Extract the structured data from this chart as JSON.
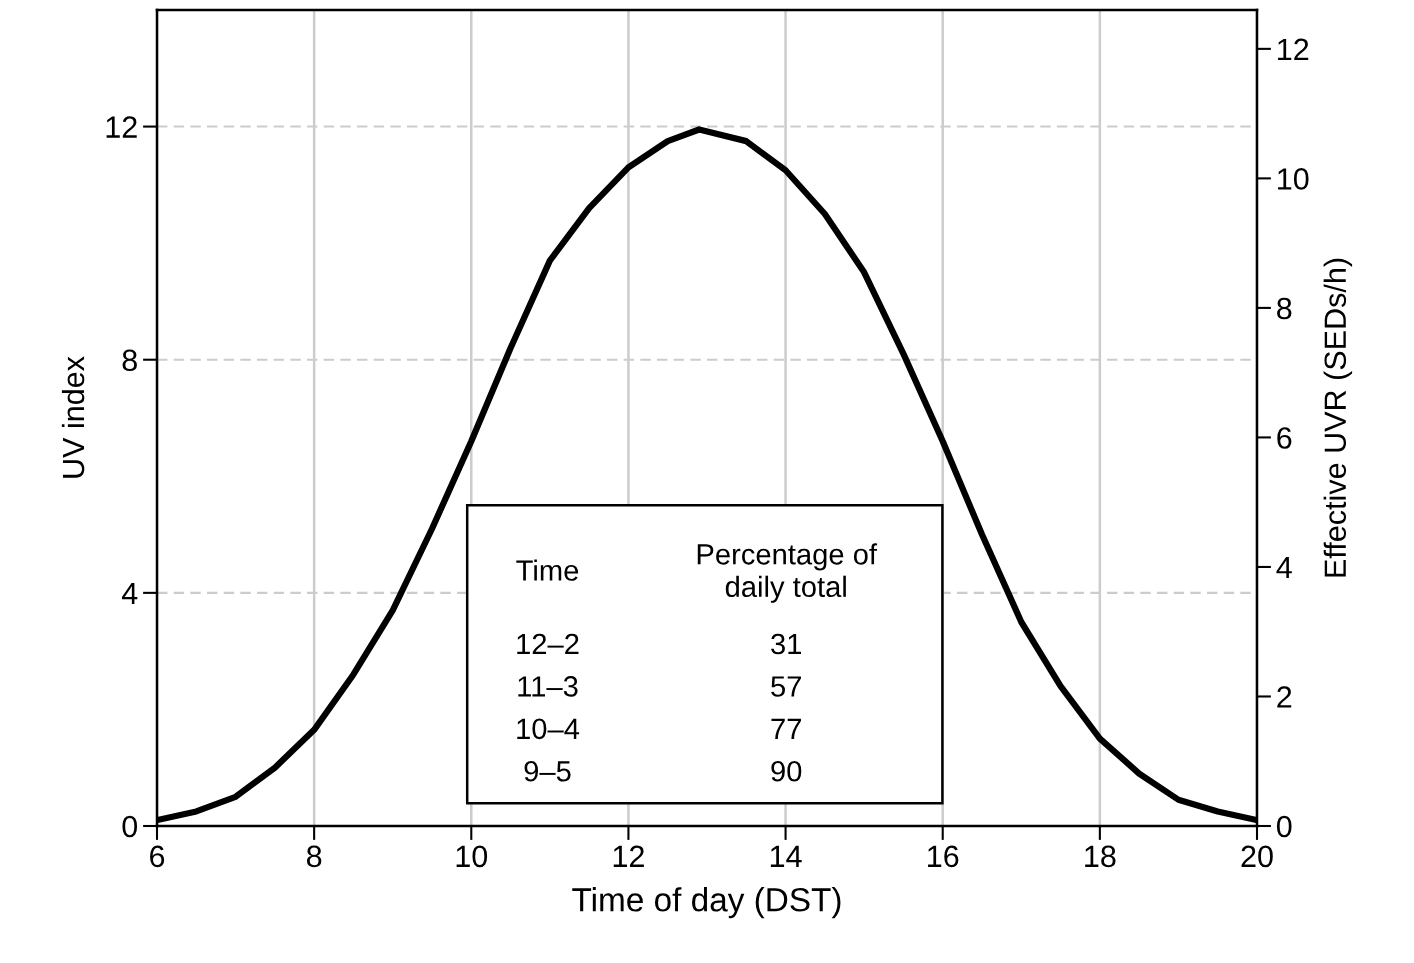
{
  "chart_data": {
    "type": "line",
    "xlabel": "Time of day (DST)",
    "ylabel": "UV index",
    "y2label": "Effective UVR (SEDs/h)",
    "x": [
      6,
      6.5,
      7,
      7.5,
      8,
      8.5,
      9,
      9.5,
      10,
      10.5,
      11,
      11.5,
      12,
      12.5,
      12.9,
      13.5,
      14,
      14.5,
      15,
      15.5,
      16,
      16.5,
      17,
      17.5,
      18,
      18.5,
      19,
      19.5,
      20
    ],
    "series": [
      {
        "color": "#000000",
        "values": [
          0.1,
          0.25,
          0.5,
          1.0,
          1.65,
          2.6,
          3.7,
          5.1,
          6.6,
          8.2,
          9.7,
          10.6,
          11.3,
          11.75,
          11.95,
          11.75,
          11.25,
          10.5,
          9.5,
          8.1,
          6.6,
          5.0,
          3.5,
          2.4,
          1.5,
          0.9,
          0.45,
          0.25,
          0.1
        ]
      }
    ],
    "xlim": [
      6,
      20
    ],
    "xticks": [
      6,
      8,
      10,
      12,
      14,
      16,
      18,
      20
    ],
    "ylim": [
      0,
      14
    ],
    "yticks": [
      0,
      4,
      8,
      12
    ],
    "y2lim": [
      0,
      12.6
    ],
    "y2ticks": [
      0,
      2,
      4,
      6,
      8,
      10,
      12
    ],
    "grid": true,
    "marker": "none",
    "line_style": "solid",
    "legend": false,
    "annotations": [
      "Time",
      "Percentage of\ndaily total",
      "12–2",
      "31",
      "11–3",
      "57",
      "10–4",
      "77",
      "9–5",
      "90"
    ]
  }
}
